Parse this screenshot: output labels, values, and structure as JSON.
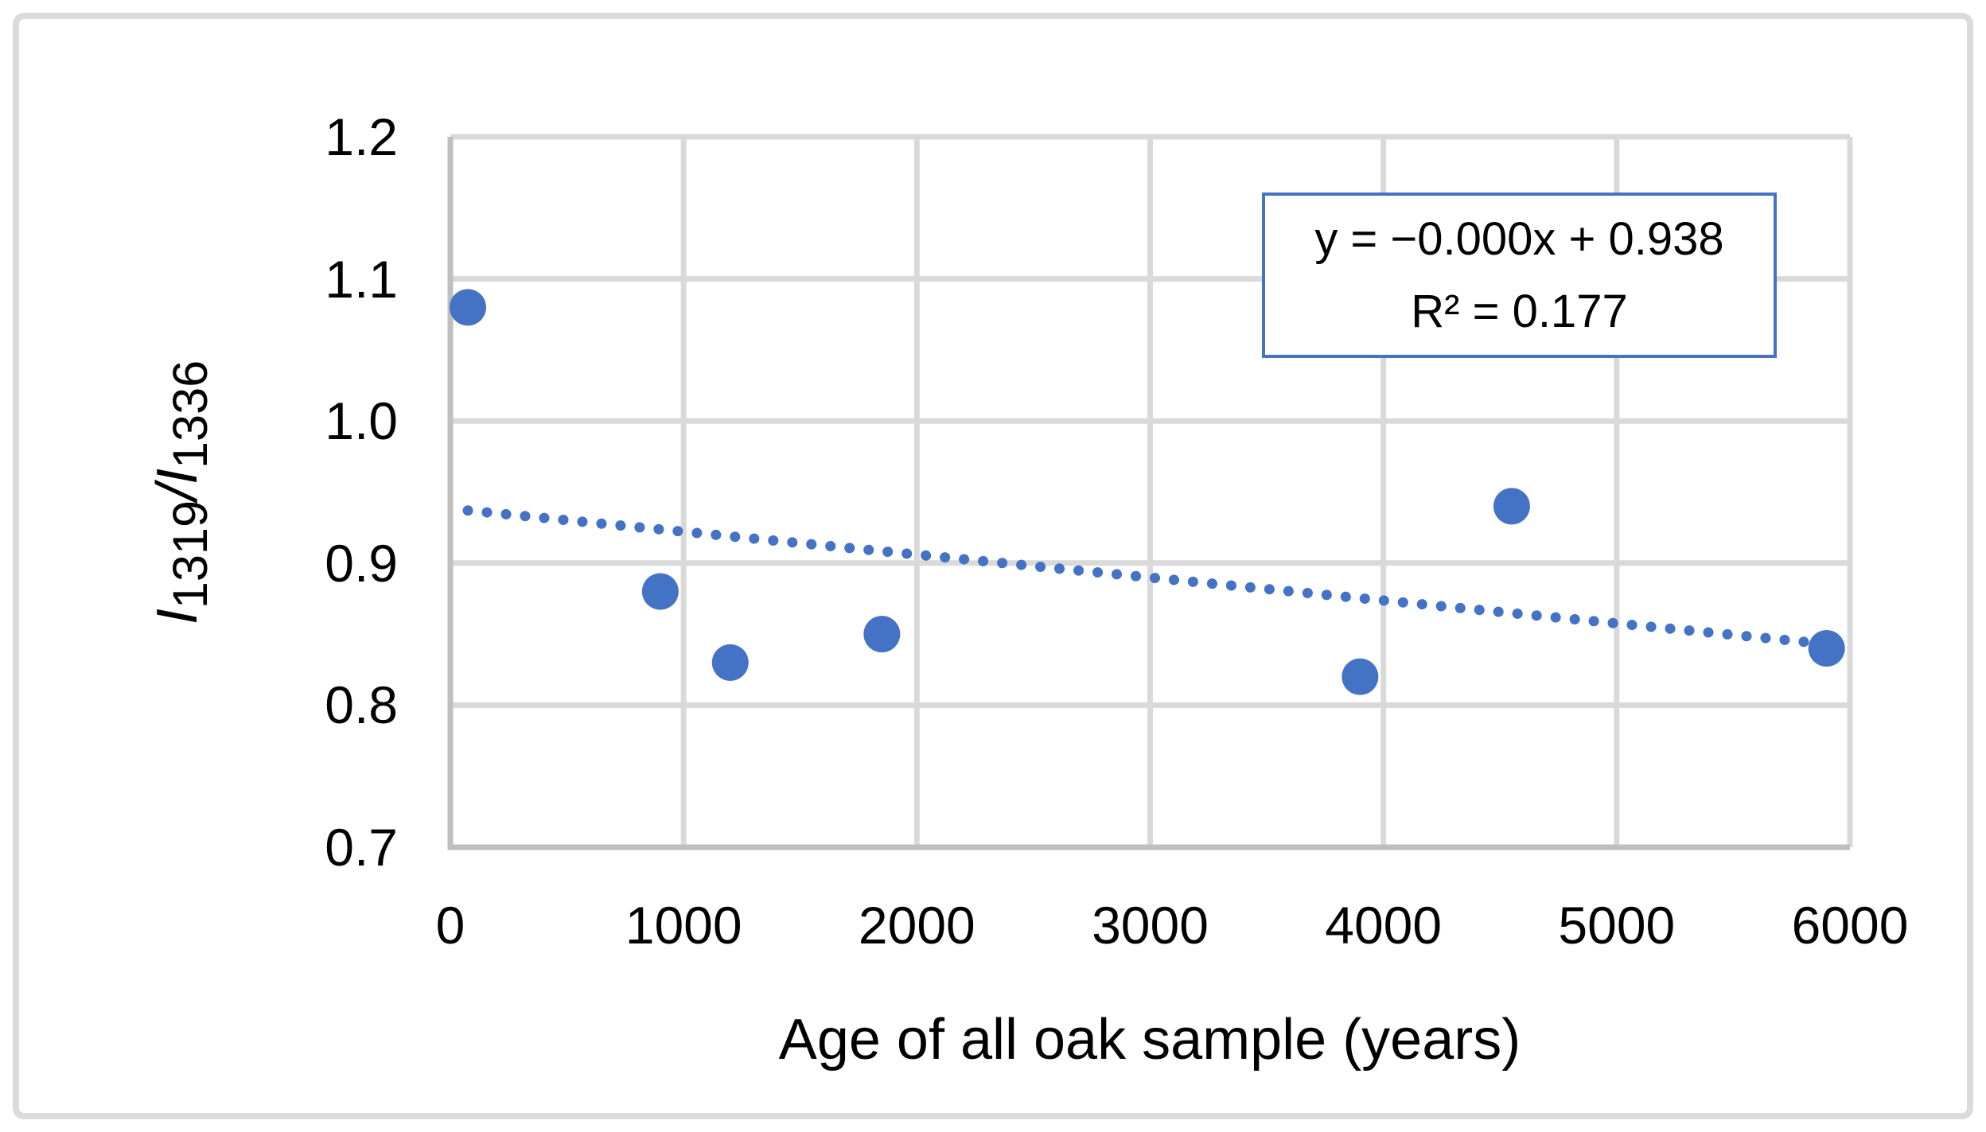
{
  "chart_data": {
    "type": "scatter",
    "title": "",
    "xlabel": "Age of all oak sample (years)",
    "ylabel": "I1319/I1336",
    "ylabel_segments": [
      {
        "text": "I",
        "kind": "italic"
      },
      {
        "text": "1319",
        "kind": "sub"
      },
      {
        "text": "/",
        "kind": "italic"
      },
      {
        "text": "I",
        "kind": "italic"
      },
      {
        "text": "1336",
        "kind": "sub"
      }
    ],
    "xlim": [
      0,
      6000
    ],
    "ylim": [
      0.7,
      1.2
    ],
    "x_tick_labels": [
      "0",
      "1000",
      "2000",
      "3000",
      "4000",
      "5000",
      "6000"
    ],
    "y_tick_labels": [
      "1.2",
      "1.1",
      "1.0",
      "0.9",
      "0.8",
      "0.7"
    ],
    "grid": true,
    "legend": "none",
    "points": [
      {
        "x": 75,
        "y": 1.08
      },
      {
        "x": 900,
        "y": 0.88
      },
      {
        "x": 1200,
        "y": 0.83
      },
      {
        "x": 1850,
        "y": 0.85
      },
      {
        "x": 3900,
        "y": 0.82
      },
      {
        "x": 4550,
        "y": 0.94
      },
      {
        "x": 5900,
        "y": 0.84
      }
    ],
    "trendline": {
      "style": "dotted",
      "x_start": 75,
      "y_start": 0.937,
      "x_end": 5900,
      "y_end": 0.843,
      "equation": "y = −0.000x + 0.938",
      "r_squared": "R² = 0.177"
    },
    "colors": {
      "marker": "#4472C4",
      "trendline": "#4472C4",
      "equation_border": "#4472C4",
      "gridline": "#D9D9D9",
      "axis_line": "#BFBFBF",
      "chart_border": "#DBDBDB",
      "text": "#000000"
    }
  }
}
